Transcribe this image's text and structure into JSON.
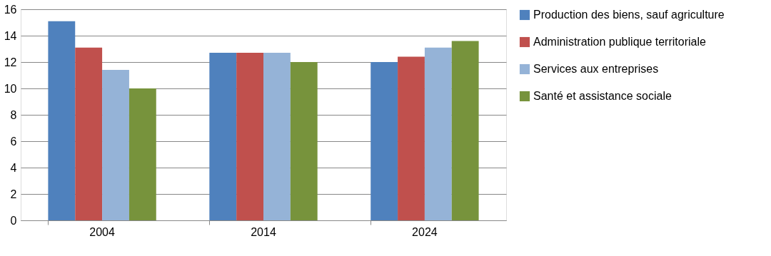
{
  "chart_data": {
    "type": "bar",
    "categories": [
      "2004",
      "2014",
      "2024"
    ],
    "series": [
      {
        "name": "Production des biens, sauf agriculture",
        "color": "#4f81bd",
        "values": [
          15.1,
          12.7,
          12.0
        ]
      },
      {
        "name": "Administration publique territoriale",
        "color": "#c0504d",
        "values": [
          13.1,
          12.7,
          12.4
        ]
      },
      {
        "name": "Services aux entreprises",
        "color": "#95b3d7",
        "values": [
          11.4,
          12.7,
          13.1
        ]
      },
      {
        "name": "Santé et assistance sociale",
        "color": "#77933c",
        "values": [
          10.0,
          12.0,
          13.6
        ]
      }
    ],
    "ylim": [
      0,
      16
    ],
    "yticks": [
      0,
      2,
      4,
      6,
      8,
      10,
      12,
      14,
      16
    ],
    "grid": "y",
    "legend": "right"
  }
}
